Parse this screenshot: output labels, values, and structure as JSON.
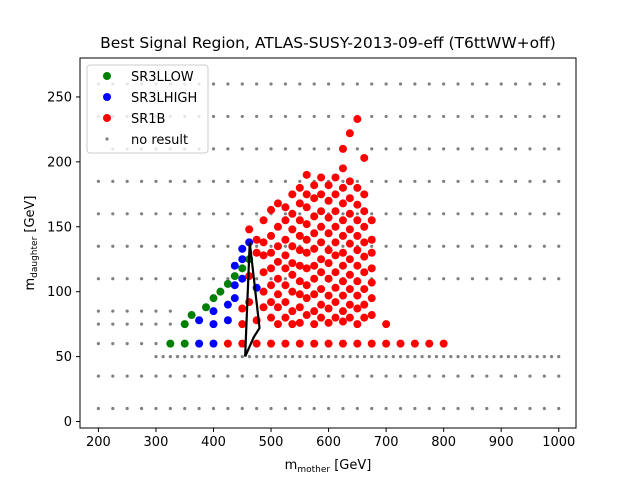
{
  "chart_data": {
    "type": "scatter",
    "title": "Best Signal Region, ATLAS-SUSY-2013-09-eff (T6ttWW+off)",
    "xlabel_main": "m",
    "xlabel_sub": "mother",
    "xlabel_unit": " [GeV]",
    "ylabel_main": "m",
    "ylabel_sub": "daughter",
    "ylabel_unit": " [GeV]",
    "xlim": [
      168,
      1030
    ],
    "ylim": [
      -5,
      280
    ],
    "xticks": [
      200,
      300,
      400,
      500,
      600,
      700,
      800,
      900,
      1000
    ],
    "yticks": [
      0,
      50,
      100,
      150,
      200,
      250
    ],
    "legend_position": "upper left",
    "grid": false,
    "colors": {
      "SR3LLOW": "#008000",
      "SR3LHIGH": "#0000ff",
      "SR1B": "#ff0000",
      "no_result": "#808080",
      "exclusion_line": "#000000"
    },
    "series": [
      {
        "name": "SR3LLOW",
        "points": [
          [
            325,
            60
          ],
          [
            350,
            60
          ],
          [
            350,
            75
          ],
          [
            362,
            82
          ],
          [
            387,
            88
          ],
          [
            400,
            95
          ],
          [
            412,
            100
          ],
          [
            425,
            106
          ],
          [
            437,
            112
          ],
          [
            450,
            118
          ],
          [
            462,
            125
          ]
        ]
      },
      {
        "name": "SR3LHIGH",
        "points": [
          [
            375,
            60
          ],
          [
            400,
            60
          ],
          [
            375,
            78
          ],
          [
            400,
            75
          ],
          [
            400,
            85
          ],
          [
            425,
            78
          ],
          [
            425,
            90
          ],
          [
            437,
            95
          ],
          [
            437,
            105
          ],
          [
            450,
            110
          ],
          [
            437,
            120
          ],
          [
            450,
            125
          ],
          [
            450,
            133
          ],
          [
            462,
            138
          ],
          [
            475,
            103
          ]
        ]
      },
      {
        "name": "SR1B",
        "points": [
          [
            425,
            60
          ],
          [
            450,
            60
          ],
          [
            475,
            60
          ],
          [
            500,
            60
          ],
          [
            525,
            60
          ],
          [
            550,
            60
          ],
          [
            575,
            60
          ],
          [
            600,
            60
          ],
          [
            625,
            60
          ],
          [
            650,
            60
          ],
          [
            675,
            60
          ],
          [
            700,
            60
          ],
          [
            725,
            60
          ],
          [
            750,
            60
          ],
          [
            775,
            60
          ],
          [
            800,
            60
          ],
          [
            450,
            75
          ],
          [
            450,
            87
          ],
          [
            462,
            112
          ],
          [
            462,
            92
          ],
          [
            462,
            148
          ],
          [
            475,
            78
          ],
          [
            475,
            140
          ],
          [
            475,
            130
          ],
          [
            487,
            155
          ],
          [
            487,
            138
          ],
          [
            487,
            128
          ],
          [
            487,
            115
          ],
          [
            487,
            100
          ],
          [
            487,
            88
          ],
          [
            500,
            80
          ],
          [
            500,
            92
          ],
          [
            500,
            105
          ],
          [
            500,
            118
          ],
          [
            500,
            130
          ],
          [
            500,
            143
          ],
          [
            500,
            163
          ],
          [
            512,
            75
          ],
          [
            512,
            88
          ],
          [
            512,
            98
          ],
          [
            512,
            110
          ],
          [
            512,
            123
          ],
          [
            512,
            135
          ],
          [
            512,
            150
          ],
          [
            512,
            168
          ],
          [
            525,
            80
          ],
          [
            525,
            92
          ],
          [
            525,
            105
          ],
          [
            525,
            118
          ],
          [
            525,
            128
          ],
          [
            525,
            140
          ],
          [
            525,
            155
          ],
          [
            525,
            165
          ],
          [
            537,
            75
          ],
          [
            537,
            85
          ],
          [
            537,
            100
          ],
          [
            537,
            113
          ],
          [
            537,
            122
          ],
          [
            537,
            135
          ],
          [
            537,
            148
          ],
          [
            537,
            160
          ],
          [
            537,
            175
          ],
          [
            550,
            76
          ],
          [
            550,
            88
          ],
          [
            550,
            98
          ],
          [
            550,
            108
          ],
          [
            550,
            120
          ],
          [
            550,
            132
          ],
          [
            550,
            143
          ],
          [
            550,
            155
          ],
          [
            550,
            168
          ],
          [
            550,
            180
          ],
          [
            562,
            82
          ],
          [
            562,
            95
          ],
          [
            562,
            105
          ],
          [
            562,
            118
          ],
          [
            562,
            130
          ],
          [
            562,
            140
          ],
          [
            562,
            152
          ],
          [
            562,
            165
          ],
          [
            562,
            175
          ],
          [
            562,
            190
          ],
          [
            575,
            75
          ],
          [
            575,
            85
          ],
          [
            575,
            98
          ],
          [
            575,
            110
          ],
          [
            575,
            120
          ],
          [
            575,
            133
          ],
          [
            575,
            145
          ],
          [
            575,
            158
          ],
          [
            575,
            172
          ],
          [
            575,
            182
          ],
          [
            587,
            80
          ],
          [
            587,
            90
          ],
          [
            587,
            102
          ],
          [
            587,
            115
          ],
          [
            587,
            125
          ],
          [
            587,
            138
          ],
          [
            587,
            150
          ],
          [
            587,
            162
          ],
          [
            587,
            175
          ],
          [
            587,
            188
          ],
          [
            600,
            76
          ],
          [
            600,
            87
          ],
          [
            600,
            97
          ],
          [
            600,
            110
          ],
          [
            600,
            122
          ],
          [
            600,
            132
          ],
          [
            600,
            145
          ],
          [
            600,
            157
          ],
          [
            600,
            170
          ],
          [
            600,
            182
          ],
          [
            612,
            80
          ],
          [
            612,
            92
          ],
          [
            612,
            103
          ],
          [
            612,
            115
          ],
          [
            612,
            128
          ],
          [
            612,
            138
          ],
          [
            612,
            150
          ],
          [
            612,
            162
          ],
          [
            612,
            175
          ],
          [
            612,
            188
          ],
          [
            625,
            77
          ],
          [
            625,
            85
          ],
          [
            625,
            97
          ],
          [
            625,
            108
          ],
          [
            625,
            120
          ],
          [
            625,
            130
          ],
          [
            625,
            143
          ],
          [
            625,
            155
          ],
          [
            625,
            168
          ],
          [
            625,
            180
          ],
          [
            625,
            195
          ],
          [
            625,
            210
          ],
          [
            637,
            80
          ],
          [
            637,
            90
          ],
          [
            637,
            102
          ],
          [
            637,
            113
          ],
          [
            637,
            125
          ],
          [
            637,
            137
          ],
          [
            637,
            148
          ],
          [
            637,
            160
          ],
          [
            637,
            172
          ],
          [
            637,
            185
          ],
          [
            637,
            222
          ],
          [
            650,
            75
          ],
          [
            650,
            87
          ],
          [
            650,
            97
          ],
          [
            650,
            108
          ],
          [
            650,
            120
          ],
          [
            650,
            132
          ],
          [
            650,
            143
          ],
          [
            650,
            155
          ],
          [
            650,
            167
          ],
          [
            650,
            180
          ],
          [
            650,
            233
          ],
          [
            662,
            80
          ],
          [
            662,
            90
          ],
          [
            662,
            102
          ],
          [
            662,
            115
          ],
          [
            662,
            127
          ],
          [
            662,
            138
          ],
          [
            662,
            150
          ],
          [
            662,
            162
          ],
          [
            662,
            175
          ],
          [
            662,
            203
          ],
          [
            675,
            82
          ],
          [
            675,
            95
          ],
          [
            675,
            107
          ],
          [
            675,
            118
          ],
          [
            675,
            130
          ],
          [
            675,
            140
          ],
          [
            675,
            155
          ],
          [
            700,
            75
          ]
        ]
      },
      {
        "name": "no result",
        "grid_dots": {
          "ys": [
            10,
            35,
            50,
            60,
            75,
            85,
            110,
            135,
            160,
            185,
            210,
            235,
            260,
            285
          ],
          "x_step": 25,
          "y_ranges": {
            "10": [
              200,
              1000
            ],
            "35": [
              200,
              1000
            ],
            "60": [
              200,
              325
            ],
            "75": [
              200,
              325
            ],
            "85": [
              200,
              325
            ],
            "110": [
              200,
              1000
            ],
            "135": [
              200,
              1000
            ],
            "160": [
              200,
              1000
            ],
            "185": [
              200,
              1000
            ],
            "210": [
              225,
              1000
            ],
            "235": [
              200,
              1000
            ],
            "260": [
              200,
              1000
            ],
            "285": [
              200,
              1000
            ]
          }
        },
        "row_50": {
          "x_from": 300,
          "x_to": 1000,
          "step": 12.5
        }
      }
    ],
    "exclusion_line": [
      [
        455,
        50
      ],
      [
        470,
        65
      ],
      [
        480,
        72
      ],
      [
        463,
        138
      ],
      [
        455,
        50
      ]
    ]
  }
}
